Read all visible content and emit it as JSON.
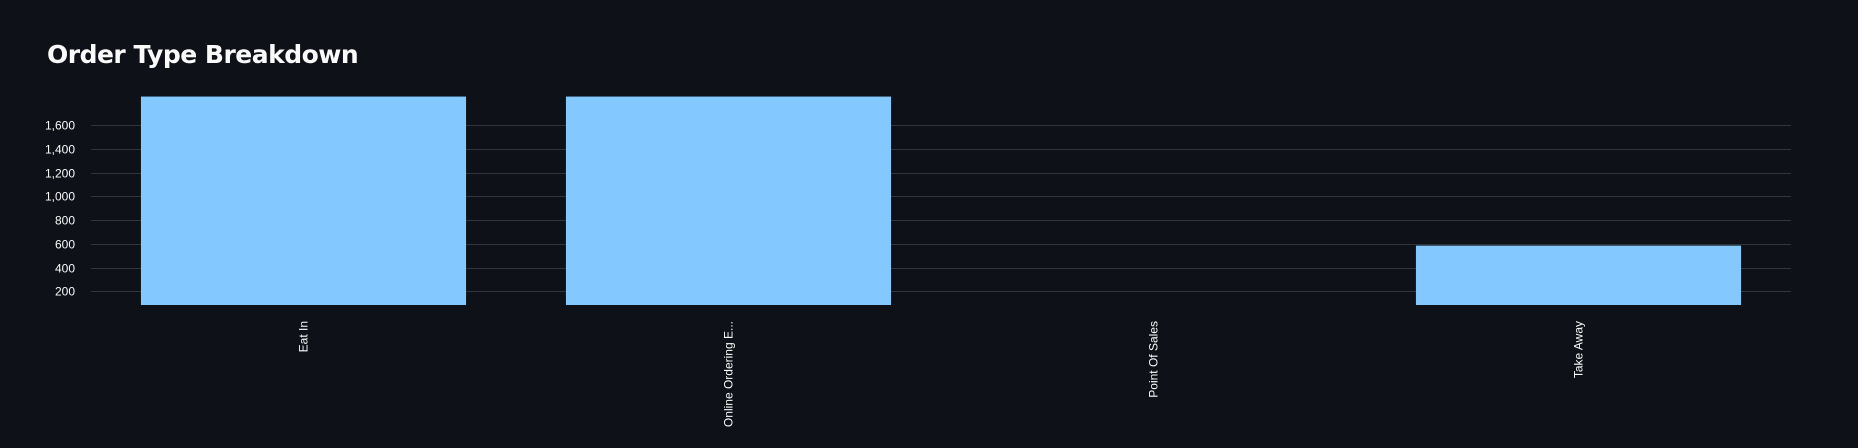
{
  "chart_data": {
    "type": "bar",
    "title": "Order Type Breakdown",
    "categories": [
      "Eat In",
      "Online Ordering E...",
      "Point Of Sales",
      "Take Away"
    ],
    "values": [
      1840,
      1840,
      0,
      585
    ],
    "ylim": [
      85,
      1870
    ],
    "yticks": [
      200,
      400,
      600,
      800,
      1000,
      1200,
      1400,
      1600
    ],
    "ytick_labels": [
      "200",
      "400",
      "600",
      "800",
      "1,000",
      "1,200",
      "1,400",
      "1,600"
    ],
    "xlabel": "",
    "ylabel": "",
    "grid": true,
    "bar_color": "#83c9ff",
    "grid_color": "#31333f",
    "background_color": "#0e1117"
  }
}
